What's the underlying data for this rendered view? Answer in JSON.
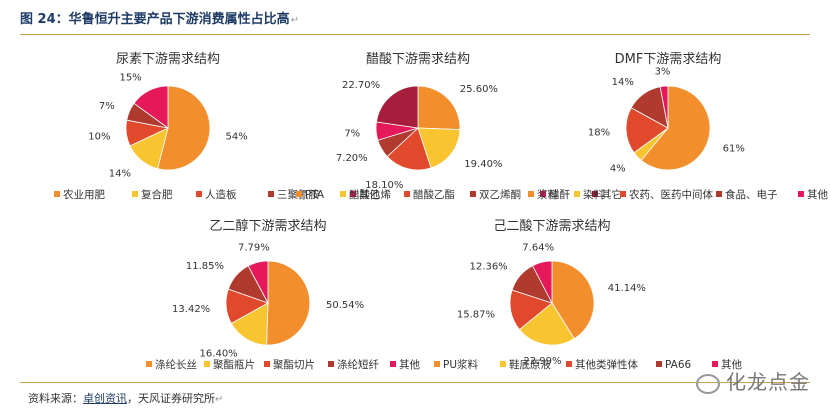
{
  "figure": {
    "label": "图 24：",
    "title": "华鲁恒升主要产品下游消费属性占比高",
    "para_mark": "↵"
  },
  "source": {
    "prefix": "资料来源：",
    "link1": "卓创资讯",
    "rest": "，天风证券研究所",
    "para_mark": "↵"
  },
  "watermark": "化龙点金",
  "chart_data": [
    {
      "type": "pie",
      "title": "尿素下游需求结构",
      "categories": [
        "农业用肥",
        "复合肥",
        "人造板",
        "三聚氰胺",
        "其他"
      ],
      "values": [
        54,
        14,
        10,
        7,
        15
      ],
      "value_labels": [
        "54%",
        "14%",
        "10%",
        "7%",
        "15%"
      ],
      "colors": [
        "#f28e2b",
        "#f8c42f",
        "#e0492b",
        "#b03a2e",
        "#e5195a"
      ]
    },
    {
      "type": "pie",
      "title": "醋酸下游需求结构",
      "categories": [
        "PTA",
        "醋酸乙烯",
        "醋酸乙酯",
        "双乙烯酮",
        "醋酐",
        "其它"
      ],
      "values": [
        25.6,
        19.4,
        18.1,
        7.2,
        7,
        22.7
      ],
      "value_labels": [
        "25.60%",
        "19.40%",
        "18.10%",
        "7.20%",
        "7%",
        "22.70%"
      ],
      "colors": [
        "#f28e2b",
        "#f8c42f",
        "#e0492b",
        "#b03a2e",
        "#e5195a",
        "#a61e3c"
      ]
    },
    {
      "type": "pie",
      "title": "DMF下游需求结构",
      "categories": [
        "浆料",
        "染料",
        "农药、医药中间体",
        "食品、电子",
        "其他"
      ],
      "values": [
        61,
        4,
        18,
        14,
        3
      ],
      "value_labels": [
        "61%",
        "4%",
        "18%",
        "14%",
        "3%"
      ],
      "colors": [
        "#f28e2b",
        "#f8c42f",
        "#e0492b",
        "#b03a2e",
        "#e5195a"
      ]
    },
    {
      "type": "pie",
      "title": "乙二醇下游需求结构",
      "categories": [
        "涤纶长丝",
        "聚酯瓶片",
        "聚酯切片",
        "涤纶短纤",
        "其他"
      ],
      "values": [
        50.54,
        16.4,
        13.42,
        11.85,
        7.79
      ],
      "value_labels": [
        "50.54%",
        "16.40%",
        "13.42%",
        "11.85%",
        "7.79%"
      ],
      "colors": [
        "#f28e2b",
        "#f8c42f",
        "#e0492b",
        "#b03a2e",
        "#e5195a"
      ]
    },
    {
      "type": "pie",
      "title": "己二酸下游需求结构",
      "categories": [
        "PU浆料",
        "鞋底原液",
        "其他类弹性体",
        "PA66",
        "其他"
      ],
      "values": [
        41.14,
        22.99,
        15.87,
        12.36,
        7.64
      ],
      "value_labels": [
        "41.14%",
        "22.99%",
        "15.87%",
        "12.36%",
        "7.64%"
      ],
      "colors": [
        "#f28e2b",
        "#f8c42f",
        "#e0492b",
        "#b03a2e",
        "#e5195a"
      ]
    }
  ]
}
